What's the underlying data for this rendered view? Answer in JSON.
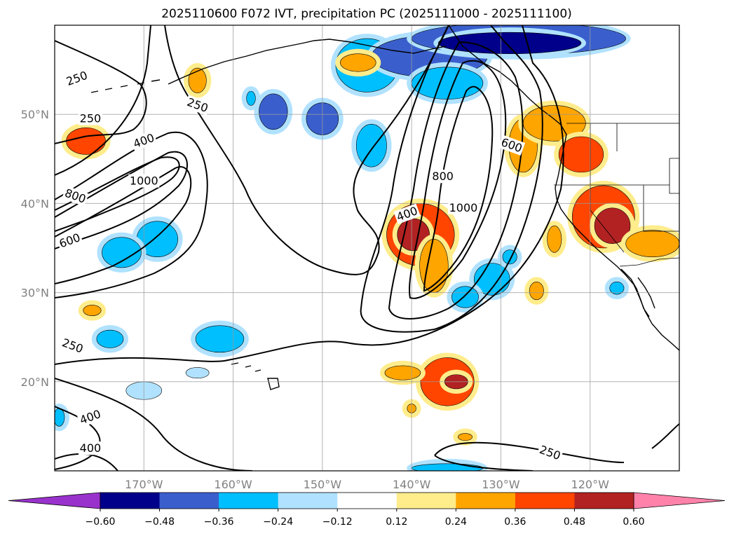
{
  "title": "2025110600 F072 IVT, precipitation PC (2025111000 - 2025111100)",
  "map": {
    "lon_range": [
      -180,
      -110
    ],
    "lat_range": [
      10,
      60
    ],
    "gridlines": true,
    "lon_labels": [
      "170°W",
      "160°W",
      "150°W",
      "140°W",
      "130°W",
      "120°W"
    ],
    "lat_labels": [
      "50°N",
      "40°N",
      "30°N",
      "20°N"
    ]
  },
  "ivt_contours": {
    "levels": [
      250,
      400,
      600,
      800,
      1000
    ],
    "labels": [
      {
        "text": "250",
        "lon": -177.5,
        "lat": 54.0
      },
      {
        "text": "250",
        "lon": -176.0,
        "lat": 49.5
      },
      {
        "text": "250",
        "lon": -164.0,
        "lat": 51.0
      },
      {
        "text": "400",
        "lon": -170.0,
        "lat": 47.0
      },
      {
        "text": "1000",
        "lon": -170.0,
        "lat": 42.5
      },
      {
        "text": "800",
        "lon": -177.7,
        "lat": 40.8
      },
      {
        "text": "600",
        "lon": -178.3,
        "lat": 35.8
      },
      {
        "text": "800",
        "lon": -136.5,
        "lat": 43.0
      },
      {
        "text": "600",
        "lon": -128.8,
        "lat": 46.5
      },
      {
        "text": "400",
        "lon": -140.5,
        "lat": 38.8
      },
      {
        "text": "1000",
        "lon": -134.2,
        "lat": 39.5
      },
      {
        "text": "250",
        "lon": -178.0,
        "lat": 24.0
      },
      {
        "text": "400",
        "lon": -176.0,
        "lat": 16.0
      },
      {
        "text": "400",
        "lon": -176.0,
        "lat": 12.5
      },
      {
        "text": "250",
        "lon": -124.5,
        "lat": 12.0
      }
    ]
  },
  "colorbar": {
    "tick_labels": [
      "−0.60",
      "−0.48",
      "−0.36",
      "−0.24",
      "−0.12",
      "0.12",
      "0.24",
      "0.36",
      "0.48",
      "0.60"
    ],
    "colors": [
      "#9932cc",
      "#00008b",
      "#3a5fcd",
      "#00bfff",
      "#b0e2ff",
      "#ffffff",
      "#ffec8b",
      "#ffa500",
      "#ff4500",
      "#b22222",
      "#ff82ab"
    ]
  },
  "precip_pc": [
    {
      "lon": -145.0,
      "lat": 55.5,
      "rx": 3.5,
      "ry": 3.0,
      "level": -0.24
    },
    {
      "lon": -138.0,
      "lat": 56.5,
      "rx": 6.5,
      "ry": 2.3,
      "level": -0.36
    },
    {
      "lon": -128.0,
      "lat": 58.5,
      "rx": 12.0,
      "ry": 1.8,
      "level": -0.36
    },
    {
      "lon": -129.0,
      "lat": 58.0,
      "rx": 8.0,
      "ry": 1.2,
      "level": -0.48
    },
    {
      "lon": -136.0,
      "lat": 53.5,
      "rx": 4.0,
      "ry": 1.8,
      "level": -0.24
    },
    {
      "lon": -164.0,
      "lat": 53.8,
      "rx": 1.0,
      "ry": 1.4,
      "level": 0.24
    },
    {
      "lon": -158.0,
      "lat": 51.8,
      "rx": 0.5,
      "ry": 0.8,
      "level": -0.24
    },
    {
      "lon": -146.0,
      "lat": 55.8,
      "rx": 2.0,
      "ry": 1.0,
      "level": 0.24
    },
    {
      "lon": -155.5,
      "lat": 50.3,
      "rx": 1.6,
      "ry": 2.0,
      "level": -0.36
    },
    {
      "lon": -150.0,
      "lat": 49.5,
      "rx": 1.8,
      "ry": 1.8,
      "level": -0.36
    },
    {
      "lon": -144.5,
      "lat": 46.5,
      "rx": 1.7,
      "ry": 2.4,
      "level": -0.24
    },
    {
      "lon": -176.5,
      "lat": 47.0,
      "rx": 2.2,
      "ry": 1.5,
      "level": 0.36
    },
    {
      "lon": -139.0,
      "lat": 36.5,
      "rx": 3.8,
      "ry": 3.5,
      "level": 0.36
    },
    {
      "lon": -139.8,
      "lat": 36.5,
      "rx": 1.8,
      "ry": 1.8,
      "level": 0.48
    },
    {
      "lon": -137.5,
      "lat": 33.0,
      "rx": 1.6,
      "ry": 3.0,
      "level": 0.24
    },
    {
      "lon": -127.5,
      "lat": 46.5,
      "rx": 1.6,
      "ry": 3.0,
      "level": 0.24
    },
    {
      "lon": -124.0,
      "lat": 49.0,
      "rx": 3.5,
      "ry": 2.0,
      "level": 0.24
    },
    {
      "lon": -121.0,
      "lat": 45.5,
      "rx": 2.5,
      "ry": 2.0,
      "level": 0.36
    },
    {
      "lon": -118.5,
      "lat": 38.5,
      "rx": 3.5,
      "ry": 3.5,
      "level": 0.36
    },
    {
      "lon": -117.5,
      "lat": 37.5,
      "rx": 2.0,
      "ry": 2.0,
      "level": 0.48
    },
    {
      "lon": -113.0,
      "lat": 35.5,
      "rx": 3.0,
      "ry": 1.5,
      "level": 0.24
    },
    {
      "lon": -136.0,
      "lat": 20.0,
      "rx": 3.0,
      "ry": 2.7,
      "level": 0.36
    },
    {
      "lon": -135.0,
      "lat": 20.0,
      "rx": 1.3,
      "ry": 0.8,
      "level": 0.48
    },
    {
      "lon": -141.0,
      "lat": 21.0,
      "rx": 2.0,
      "ry": 0.8,
      "level": 0.24
    },
    {
      "lon": -168.5,
      "lat": 36.0,
      "rx": 2.3,
      "ry": 2.0,
      "level": -0.24
    },
    {
      "lon": -172.5,
      "lat": 34.5,
      "rx": 2.2,
      "ry": 1.7,
      "level": -0.24
    },
    {
      "lon": -131.0,
      "lat": 31.5,
      "rx": 2.0,
      "ry": 1.8,
      "level": -0.24
    },
    {
      "lon": -134.0,
      "lat": 29.5,
      "rx": 1.5,
      "ry": 1.2,
      "level": -0.24
    },
    {
      "lon": -161.5,
      "lat": 24.8,
      "rx": 2.7,
      "ry": 1.5,
      "level": -0.24
    },
    {
      "lon": -173.8,
      "lat": 24.8,
      "rx": 1.5,
      "ry": 1.0,
      "level": -0.24
    },
    {
      "lon": -170.0,
      "lat": 19.0,
      "rx": 2.0,
      "ry": 1.0,
      "level": -0.12
    },
    {
      "lon": -126.0,
      "lat": 30.2,
      "rx": 0.8,
      "ry": 1.0,
      "level": 0.24
    },
    {
      "lon": -124.0,
      "lat": 36.0,
      "rx": 0.8,
      "ry": 1.5,
      "level": 0.24
    },
    {
      "lon": -175.8,
      "lat": 28.0,
      "rx": 1.0,
      "ry": 0.6,
      "level": 0.24
    },
    {
      "lon": -117.0,
      "lat": 30.5,
      "rx": 0.8,
      "ry": 0.7,
      "level": -0.24
    },
    {
      "lon": -136.0,
      "lat": 10.3,
      "rx": 4.0,
      "ry": 0.5,
      "level": -0.24
    },
    {
      "lon": -129.0,
      "lat": 34.0,
      "rx": 0.8,
      "ry": 0.8,
      "level": -0.24
    },
    {
      "lon": -179.5,
      "lat": 16.0,
      "rx": 0.6,
      "ry": 1.0,
      "level": -0.24
    },
    {
      "lon": -134.0,
      "lat": 13.8,
      "rx": 0.8,
      "ry": 0.4,
      "level": 0.24
    },
    {
      "lon": -140.0,
      "lat": 17.0,
      "rx": 0.5,
      "ry": 0.5,
      "level": 0.24
    },
    {
      "lon": -164.0,
      "lat": 21.0,
      "rx": 1.3,
      "ry": 0.6,
      "level": -0.12
    }
  ]
}
